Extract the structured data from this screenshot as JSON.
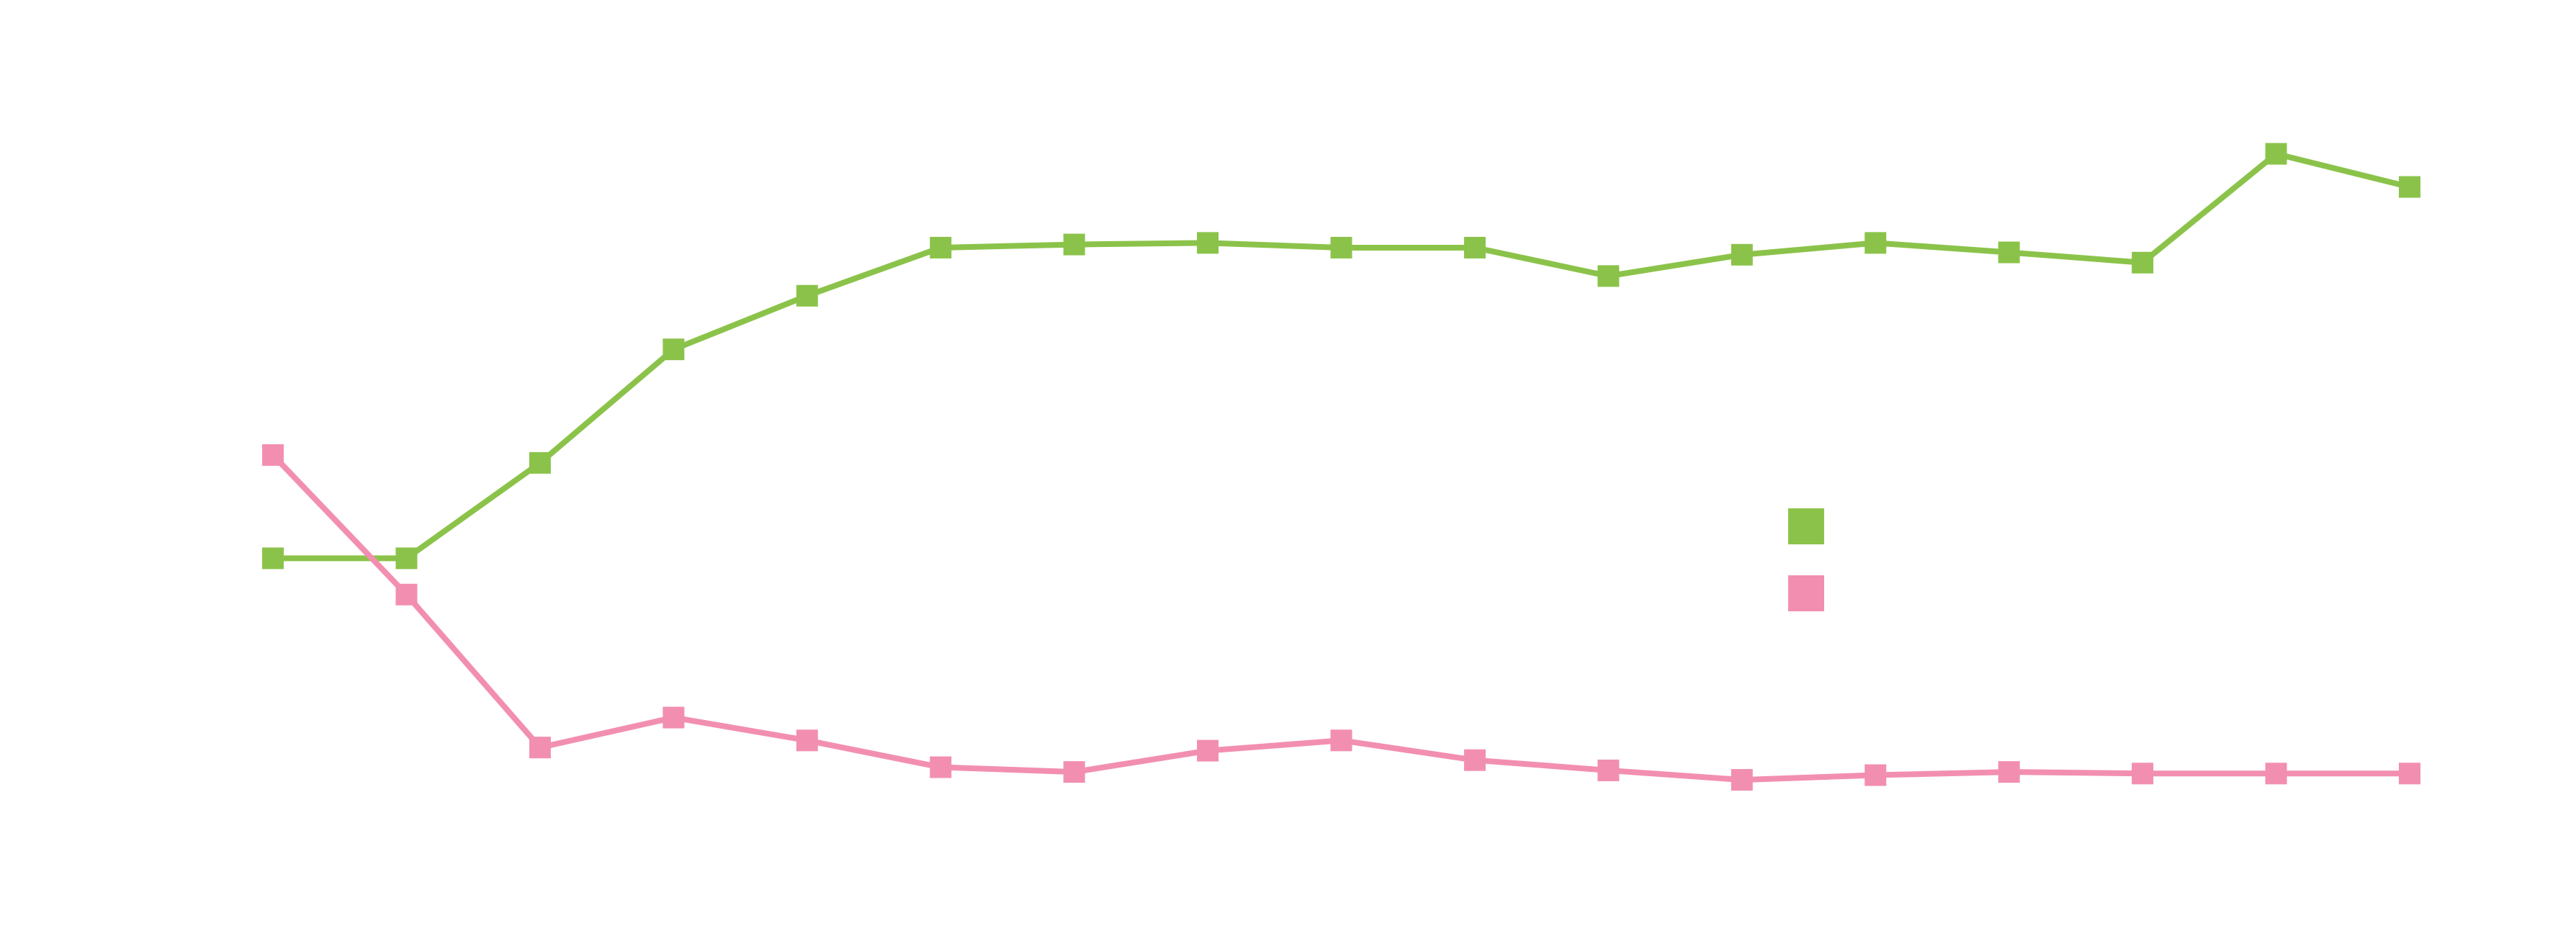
{
  "chart_data": {
    "type": "line",
    "categories": [
      null,
      null,
      null,
      null,
      null,
      null,
      null,
      null,
      null,
      null,
      null,
      null,
      null,
      null,
      null,
      null,
      null
    ],
    "series": [
      {
        "color": "#8bc34a",
        "values": [
          37.5,
          37.5,
          49.6,
          64.0,
          70.8,
          76.9,
          77.3,
          77.5,
          76.9,
          76.9,
          73.3,
          76.0,
          77.5,
          76.3,
          75.0,
          88.8,
          84.6
        ]
      },
      {
        "color": "#f28fb1",
        "values": [
          50.6,
          32.9,
          13.5,
          17.3,
          14.4,
          11.0,
          10.4,
          13.1,
          14.4,
          11.9,
          10.6,
          9.4,
          10.0,
          10.4,
          10.2,
          10.2,
          10.2
        ]
      }
    ],
    "ylim": [
      0,
      100
    ],
    "marker": "square",
    "legend": "right"
  }
}
